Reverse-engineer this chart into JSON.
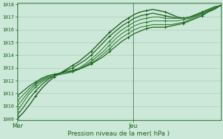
{
  "xlabel": "Pression niveau de la mer( hPa )",
  "bg_color": "#cce8d8",
  "grid_color": "#aaccb8",
  "line_color_dark": "#1a5c1a",
  "line_color_mid": "#2e7d2e",
  "ymin": 1009,
  "ymax": 1018,
  "x_tick_positions": [
    0,
    0.57
  ],
  "x_tick_labels": [
    "Mer",
    "Jeu"
  ],
  "vline_x": 0.57,
  "series": [
    [
      1009.0,
      1009.5,
      1010.1,
      1010.8,
      1011.4,
      1011.9,
      1012.3,
      1012.6,
      1012.9,
      1013.2,
      1013.5,
      1013.9,
      1014.3,
      1014.8,
      1015.3,
      1015.8,
      1016.2,
      1016.6,
      1016.9,
      1017.2,
      1017.4,
      1017.5,
      1017.6,
      1017.5,
      1017.4,
      1017.2,
      1017.0,
      1016.9,
      1017.0,
      1017.1,
      1017.3,
      1017.5,
      1017.7,
      1017.9
    ],
    [
      1009.3,
      1009.9,
      1010.6,
      1011.2,
      1011.7,
      1012.1,
      1012.4,
      1012.6,
      1012.8,
      1013.0,
      1013.3,
      1013.6,
      1014.0,
      1014.5,
      1015.0,
      1015.5,
      1015.9,
      1016.3,
      1016.6,
      1016.9,
      1017.1,
      1017.2,
      1017.3,
      1017.2,
      1017.1,
      1017.0,
      1016.9,
      1016.9,
      1017.0,
      1017.2,
      1017.4,
      1017.6,
      1017.8,
      1017.9
    ],
    [
      1009.6,
      1010.3,
      1011.0,
      1011.5,
      1011.9,
      1012.2,
      1012.4,
      1012.5,
      1012.6,
      1012.8,
      1013.0,
      1013.3,
      1013.7,
      1014.1,
      1014.6,
      1015.1,
      1015.6,
      1016.0,
      1016.3,
      1016.6,
      1016.8,
      1016.9,
      1017.0,
      1017.0,
      1016.9,
      1016.9,
      1016.9,
      1016.9,
      1017.0,
      1017.1,
      1017.3,
      1017.5,
      1017.7,
      1017.9
    ],
    [
      1010.0,
      1010.6,
      1011.2,
      1011.7,
      1012.0,
      1012.3,
      1012.4,
      1012.5,
      1012.6,
      1012.7,
      1012.9,
      1013.2,
      1013.5,
      1013.9,
      1014.3,
      1014.8,
      1015.3,
      1015.7,
      1016.0,
      1016.3,
      1016.5,
      1016.6,
      1016.7,
      1016.7,
      1016.7,
      1016.7,
      1016.7,
      1016.8,
      1016.9,
      1017.1,
      1017.3,
      1017.5,
      1017.7,
      1017.9
    ],
    [
      1010.4,
      1010.9,
      1011.4,
      1011.8,
      1012.1,
      1012.3,
      1012.4,
      1012.5,
      1012.6,
      1012.7,
      1012.9,
      1013.1,
      1013.4,
      1013.7,
      1014.1,
      1014.5,
      1015.0,
      1015.4,
      1015.7,
      1016.0,
      1016.2,
      1016.3,
      1016.4,
      1016.4,
      1016.4,
      1016.4,
      1016.5,
      1016.6,
      1016.8,
      1017.0,
      1017.2,
      1017.4,
      1017.7,
      1017.9
    ],
    [
      1010.8,
      1011.2,
      1011.6,
      1011.9,
      1012.2,
      1012.4,
      1012.5,
      1012.6,
      1012.7,
      1012.8,
      1012.9,
      1013.1,
      1013.3,
      1013.6,
      1013.9,
      1014.3,
      1014.7,
      1015.1,
      1015.4,
      1015.7,
      1015.9,
      1016.1,
      1016.2,
      1016.2,
      1016.2,
      1016.3,
      1016.4,
      1016.5,
      1016.7,
      1016.9,
      1017.1,
      1017.4,
      1017.6,
      1017.9
    ]
  ],
  "marker_every": 3,
  "marker_size": 2.5
}
